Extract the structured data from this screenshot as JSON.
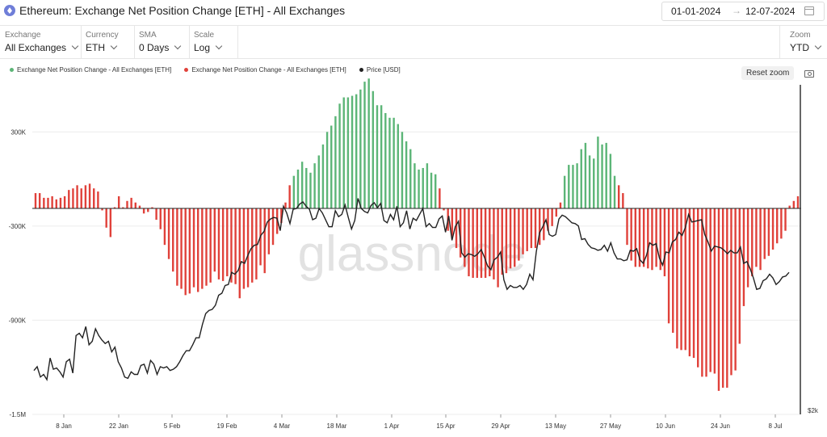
{
  "header": {
    "title": "Ethereum: Exchange Net Position Change [ETH] - All Exchanges",
    "date_from": "01-01-2024",
    "date_arrow": "→",
    "date_to": "12-07-2024"
  },
  "controls": [
    {
      "label": "Exchange",
      "value": "All Exchanges"
    },
    {
      "label": "Currency",
      "value": "ETH"
    },
    {
      "label": "SMA",
      "value": "0 Days"
    },
    {
      "label": "Scale",
      "value": "Log"
    }
  ],
  "zoom": {
    "label": "Zoom",
    "value": "YTD"
  },
  "reset_label": "Reset zoom",
  "colors": {
    "positive": "#5cb577",
    "negative": "#e0413a",
    "price": "#222222"
  },
  "chart_data": {
    "type": "bar",
    "x_ticks": [
      "8 Jan",
      "22 Jan",
      "5 Feb",
      "19 Feb",
      "4 Mar",
      "18 Mar",
      "1 Apr",
      "15 Apr",
      "29 Apr",
      "13 May",
      "27 May",
      "10 Jun",
      "24 Jun",
      "8 Jul"
    ],
    "y_ticks": [
      "300K",
      "-300K",
      "-900K",
      "-1.5M"
    ],
    "ylim": [
      -1500000,
      600000
    ],
    "legend": [
      {
        "label": "Exchange Net Position Change - All Exchanges [ETH]",
        "color": "#5cb577"
      },
      {
        "label": "Exchange Net Position Change - All Exchanges [ETH]",
        "color": "#e0413a"
      },
      {
        "label": "Price [USD]",
        "color": "#222222"
      }
    ],
    "right_axis_label": "$2k",
    "watermark": "glassnode",
    "series": [
      {
        "name": "Exchange Net Position Change - All Exchanges [ETH]",
        "values": [
          -90000,
          -90000,
          -120000,
          -120000,
          -110000,
          -130000,
          -120000,
          -110000,
          -70000,
          -60000,
          -40000,
          -60000,
          -40000,
          -30000,
          -60000,
          -80000,
          -200000,
          -310000,
          -370000,
          -180000,
          -110000,
          -180000,
          -140000,
          -120000,
          -150000,
          -170000,
          -220000,
          -210000,
          -180000,
          -260000,
          -320000,
          -420000,
          -510000,
          -590000,
          -680000,
          -700000,
          -740000,
          -730000,
          -690000,
          -720000,
          -700000,
          -680000,
          -660000,
          -590000,
          -640000,
          -650000,
          -620000,
          -660000,
          -670000,
          -760000,
          -700000,
          -690000,
          -660000,
          -640000,
          -550000,
          -600000,
          -480000,
          -420000,
          -350000,
          -280000,
          -150000,
          -40000,
          20000,
          60000,
          110000,
          70000,
          40000,
          100000,
          150000,
          220000,
          300000,
          340000,
          400000,
          480000,
          520000,
          520000,
          530000,
          540000,
          570000,
          620000,
          640000,
          560000,
          470000,
          470000,
          420000,
          390000,
          390000,
          350000,
          300000,
          240000,
          190000,
          100000,
          60000,
          70000,
          100000,
          40000,
          30000,
          -60000,
          -200000,
          -330000,
          -380000,
          -440000,
          -500000,
          -560000,
          -620000,
          -630000,
          -630000,
          -630000,
          -630000,
          -620000,
          -640000,
          -690000,
          -610000,
          -600000,
          -570000,
          -560000,
          -520000,
          -480000,
          -460000,
          -440000,
          -440000,
          -420000,
          -390000,
          -330000,
          -300000,
          -240000,
          -150000,
          20000,
          90000,
          90000,
          100000,
          190000,
          230000,
          150000,
          130000,
          270000,
          220000,
          230000,
          160000,
          20000,
          -40000,
          -90000,
          -420000,
          -520000,
          -560000,
          -560000,
          -560000,
          -570000,
          -580000,
          -560000,
          -580000,
          -620000,
          -920000,
          -980000,
          -1080000,
          -1090000,
          -1090000,
          -1130000,
          -1140000,
          -1200000,
          -1260000,
          -1260000,
          -1230000,
          -1240000,
          -1350000,
          -1330000,
          -1330000,
          -1250000,
          -1220000,
          -1050000,
          -810000,
          -690000,
          -620000,
          -560000,
          -580000,
          -510000,
          -490000,
          -450000,
          -410000,
          -380000,
          -330000,
          -170000,
          -140000,
          -110000
        ]
      },
      {
        "name": "Price [USD]",
        "values": [
          2270,
          2300,
          2220,
          2240,
          2200,
          2370,
          2280,
          2290,
          2260,
          2220,
          2340,
          2360,
          2250,
          2560,
          2580,
          2540,
          2640,
          2480,
          2510,
          2620,
          2560,
          2520,
          2490,
          2510,
          2420,
          2460,
          2340,
          2290,
          2220,
          2210,
          2260,
          2240,
          2240,
          2310,
          2320,
          2250,
          2350,
          2320,
          2240,
          2300,
          2290,
          2300,
          2270,
          2280,
          2300,
          2340,
          2390,
          2430,
          2430,
          2480,
          2540,
          2540,
          2660,
          2760,
          2790,
          2800,
          2840,
          2940,
          2960,
          3040,
          3050,
          3180,
          3160,
          3200,
          3300,
          3280,
          3370,
          3450,
          3490,
          3500,
          3610,
          3660,
          3780,
          3820,
          3840,
          3830,
          3670,
          3990,
          3900,
          3760,
          3950,
          3960,
          4020,
          4050,
          3990,
          3950,
          3810,
          3830,
          3960,
          3900,
          3810,
          3720,
          3720,
          3930,
          3850,
          3880,
          4010,
          3840,
          3690,
          3800,
          4100,
          3960,
          3920,
          3900,
          4000,
          4040,
          3970,
          4030,
          3800,
          3770,
          3880,
          3810,
          3990,
          3720,
          3770,
          3930,
          3690,
          3830,
          3800,
          3880,
          3960,
          3720,
          3760,
          3710,
          3710,
          3820,
          3860,
          3650,
          3860,
          3550,
          3720,
          3790,
          3400,
          3350,
          3390,
          3380,
          3360,
          3390,
          3440,
          3350,
          3250,
          3210,
          3320,
          3350,
          3410,
          3100,
          3000,
          3040,
          3020,
          3020,
          3040,
          3000,
          3050,
          3160,
          3100,
          3410,
          3640,
          3720,
          3810,
          3620,
          3600,
          3620,
          3820,
          3870,
          3850,
          3810,
          3770,
          3760,
          3730,
          3560,
          3570,
          3500,
          3460,
          3450,
          3430,
          3440,
          3490,
          3420,
          3520,
          3400,
          3330,
          3330,
          3310,
          3320,
          3430,
          3420,
          3450,
          3320,
          3280,
          3370,
          3520,
          3490,
          3510,
          3340,
          3260,
          3410,
          3400,
          3530,
          3560,
          3650,
          3610,
          3710,
          3880,
          3780,
          3790,
          3800,
          3810,
          3620,
          3530,
          3420,
          3480,
          3470,
          3460,
          3430,
          3390,
          3430,
          3400,
          3400,
          3470,
          3280,
          3300,
          3220,
          3120,
          3000,
          3010,
          3090,
          3110,
          3160,
          3120,
          3050,
          3080,
          3130,
          3140,
          3180
        ]
      }
    ]
  }
}
